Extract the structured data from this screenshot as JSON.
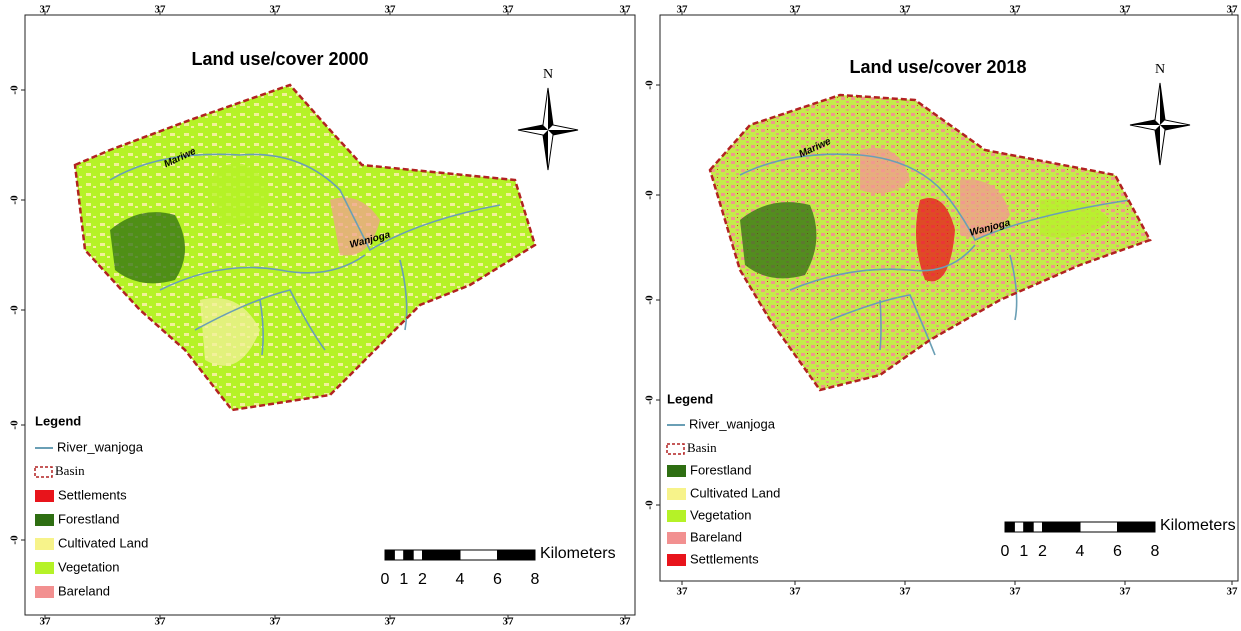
{
  "maps": [
    {
      "title": "Land use/cover 2000",
      "north": "N",
      "river_names": [
        "Mariwe",
        "Wanjoga"
      ],
      "top_ticks": [
        "37",
        "37",
        "37",
        "37",
        "37",
        "37"
      ],
      "bottom_ticks": [
        "37",
        "37",
        "37",
        "37",
        "37",
        "37"
      ],
      "left_ticks": [
        "-0",
        "-0",
        "-0",
        "-0",
        "-0"
      ],
      "legend": {
        "title": "Legend",
        "river": {
          "label": "River_wanjoga",
          "color": "#6a9fb5"
        },
        "basin": {
          "label": "Basin",
          "color": "#b22222"
        },
        "classes": [
          {
            "label": "Settlements",
            "color": "#e8141b"
          },
          {
            "label": "Forestland",
            "color": "#2e6e12"
          },
          {
            "label": "Cultivated Land",
            "color": "#f7f38a"
          },
          {
            "label": "Vegetation",
            "color": "#b5f227"
          },
          {
            "label": "Bareland",
            "color": "#f29090"
          }
        ]
      },
      "scale": {
        "unit": "Kilometers",
        "labels": [
          "0",
          "1",
          "2",
          "4",
          "6",
          "8"
        ]
      }
    },
    {
      "title": "Land use/cover 2018",
      "north": "N",
      "river_names": [
        "Mariwe",
        "Wanjoga"
      ],
      "top_ticks": [
        "37",
        "37",
        "37",
        "37",
        "37",
        "37"
      ],
      "bottom_ticks": [
        "37",
        "37",
        "37",
        "37",
        "37",
        "37"
      ],
      "left_ticks": [
        "-0",
        "-0",
        "-0",
        "-0",
        "-0"
      ],
      "legend": {
        "title": "Legend",
        "river": {
          "label": "River_wanjoga",
          "color": "#6a9fb5"
        },
        "basin": {
          "label": "Basin",
          "color": "#b22222"
        },
        "classes": [
          {
            "label": "Forestland",
            "color": "#2e6e12"
          },
          {
            "label": "Cultivated Land",
            "color": "#f7f38a"
          },
          {
            "label": "Vegetation",
            "color": "#b5f227"
          },
          {
            "label": "Bareland",
            "color": "#f29090"
          },
          {
            "label": "Settlements",
            "color": "#e8141b"
          }
        ]
      },
      "scale": {
        "unit": "Kilometers",
        "labels": [
          "0",
          "1",
          "2",
          "4",
          "6",
          "8"
        ]
      }
    }
  ]
}
